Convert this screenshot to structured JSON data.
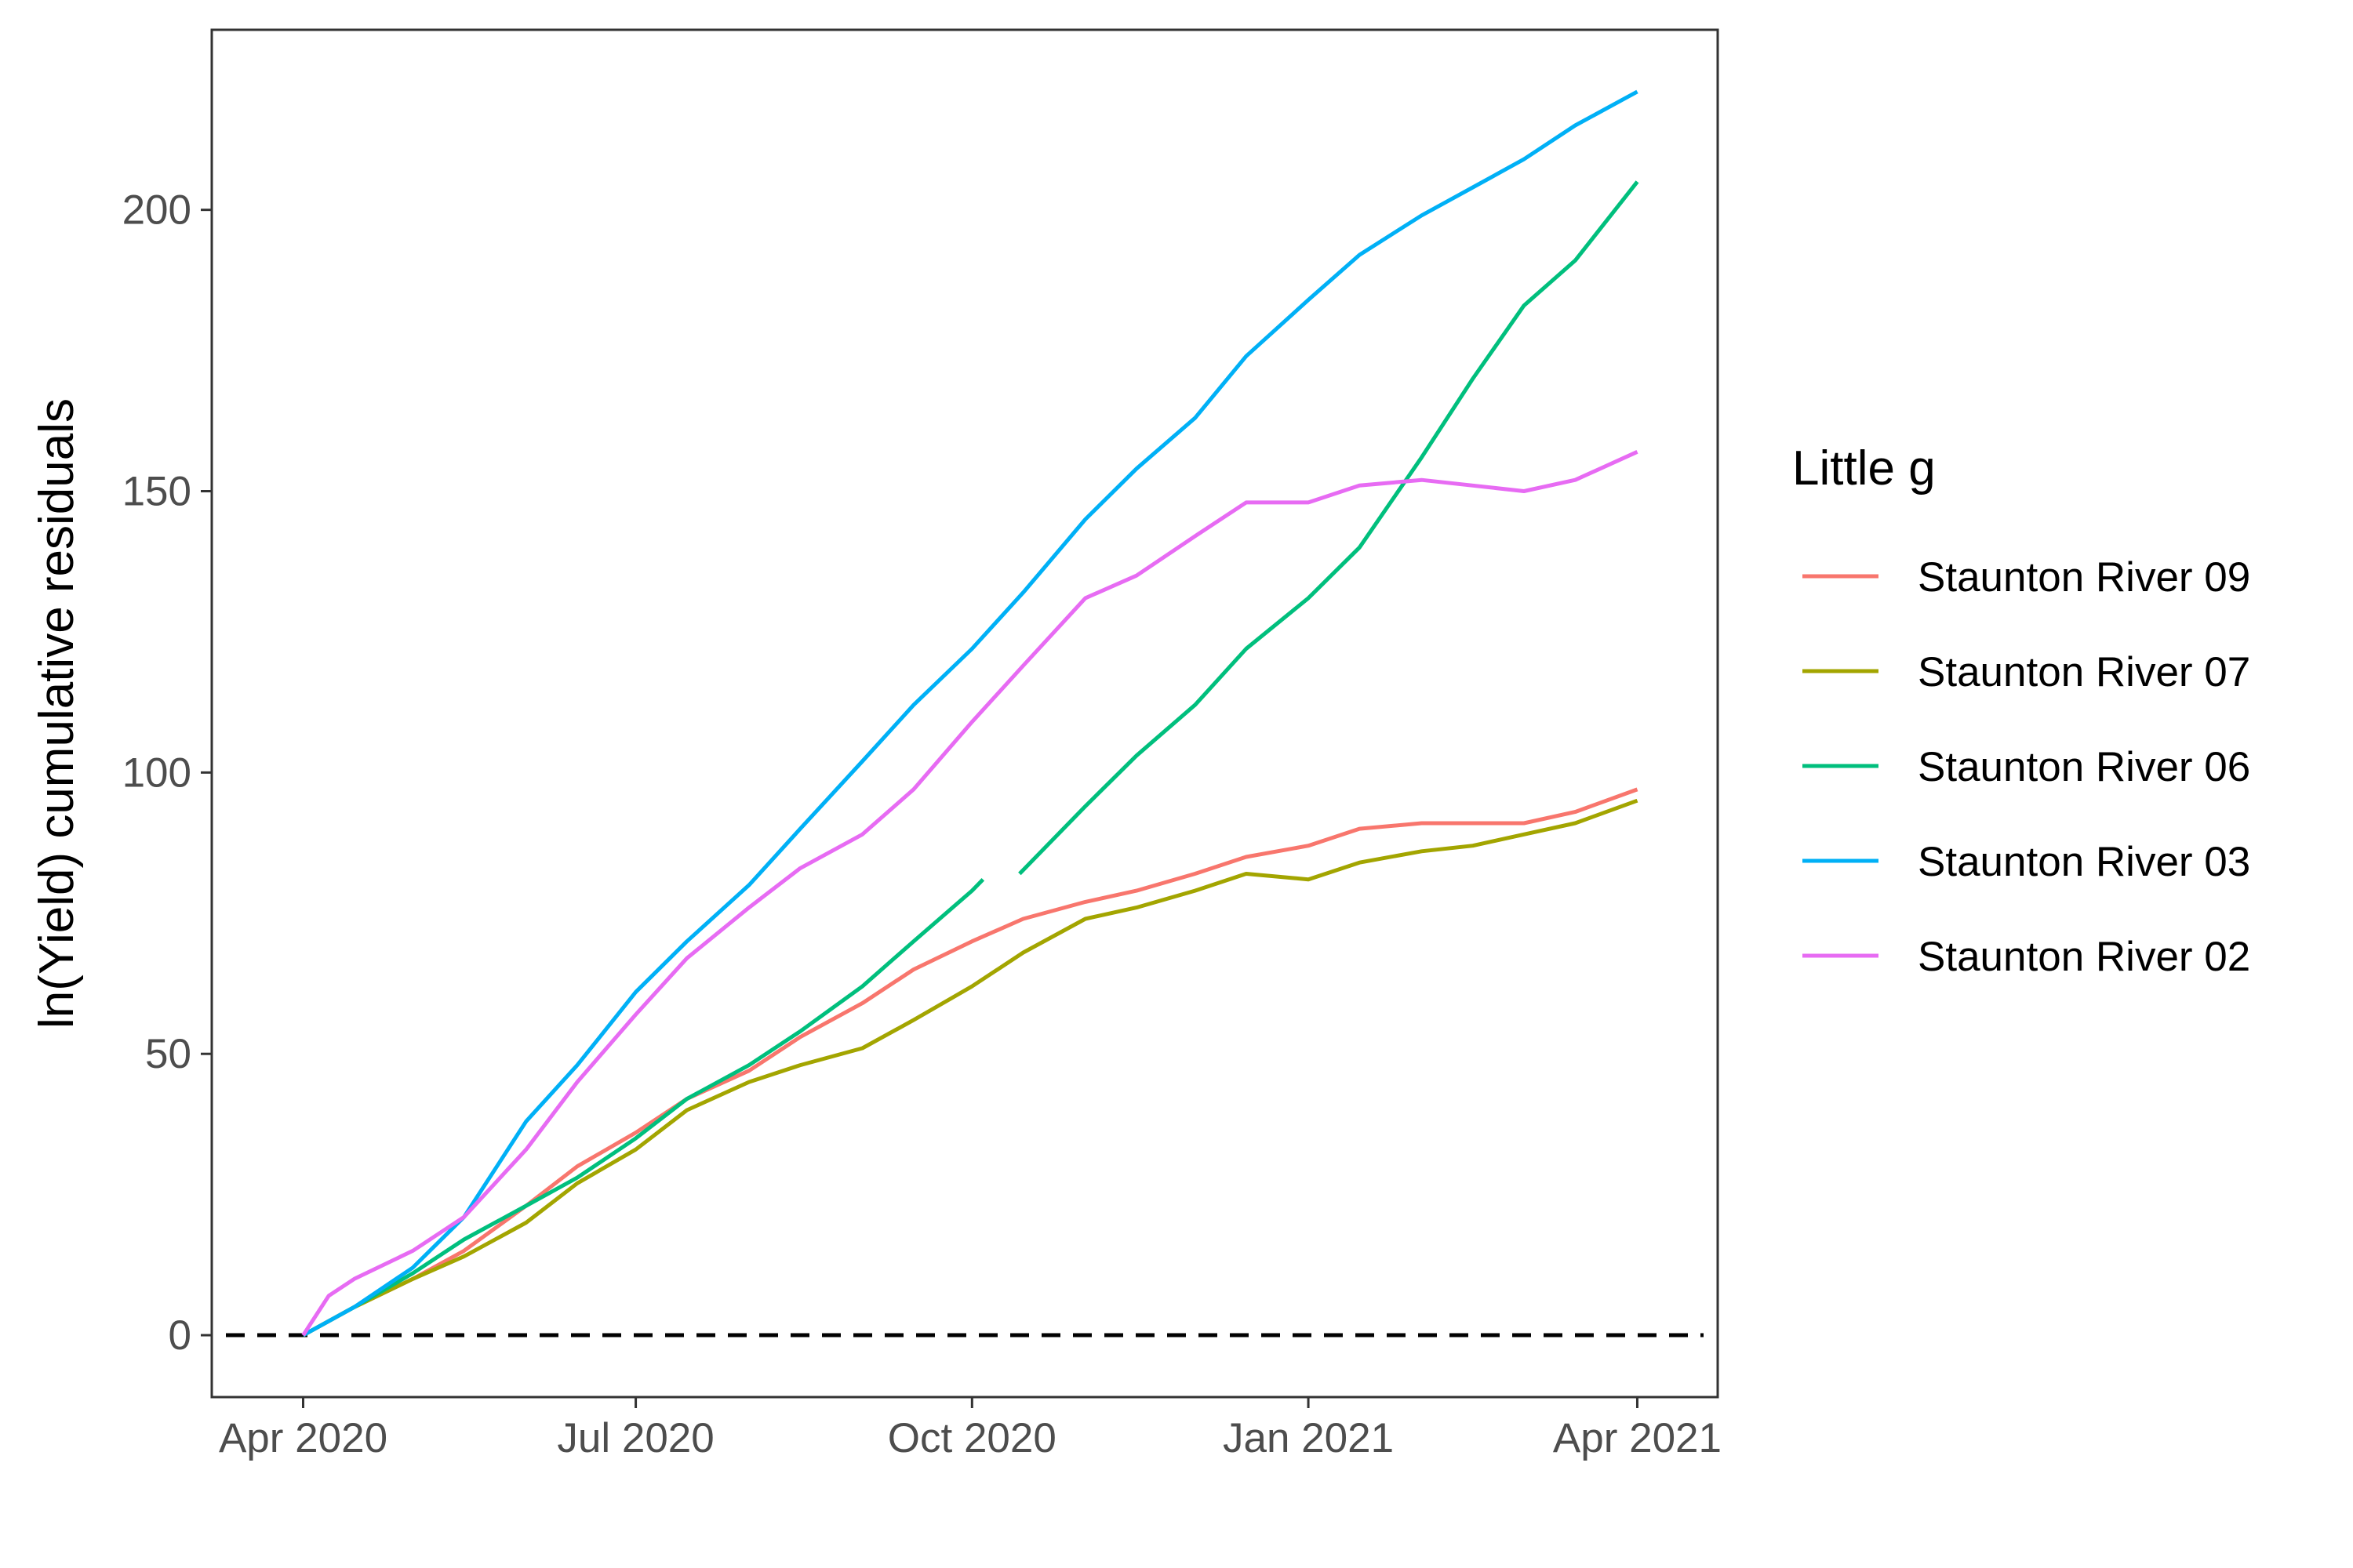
{
  "chart_data": {
    "type": "line",
    "ylabel": "ln(Yield) cumulative residuals",
    "xlabel": "",
    "x_ticks": [
      "Apr 2020",
      "Jul 2020",
      "Oct 2020",
      "Jan 2021",
      "Apr 2021"
    ],
    "y_ticks": [
      "0",
      "50",
      "100",
      "150",
      "200"
    ],
    "ylim": [
      -11,
      232
    ],
    "xlim": [
      "2020-03-07",
      "2021-04-23"
    ],
    "grid": false,
    "reference_line": {
      "y": 0,
      "style": "dashed",
      "color": "#000000"
    },
    "legend": {
      "title": "Little g",
      "placement": "right"
    },
    "series": [
      {
        "name": "Staunton River 09",
        "color": "#F8766D",
        "points": [
          [
            "2020-04-01",
            0
          ],
          [
            "2020-04-15",
            5
          ],
          [
            "2020-05-01",
            10
          ],
          [
            "2020-05-15",
            15
          ],
          [
            "2020-06-01",
            23
          ],
          [
            "2020-06-15",
            30
          ],
          [
            "2020-07-01",
            36
          ],
          [
            "2020-07-15",
            42
          ],
          [
            "2020-08-01",
            47
          ],
          [
            "2020-08-15",
            53
          ],
          [
            "2020-09-01",
            59
          ],
          [
            "2020-09-15",
            65
          ],
          [
            "2020-10-01",
            70
          ],
          [
            "2020-10-15",
            74
          ],
          [
            "2020-11-01",
            77
          ],
          [
            "2020-11-15",
            79
          ],
          [
            "2020-12-01",
            82
          ],
          [
            "2020-12-15",
            85
          ],
          [
            "2021-01-01",
            87
          ],
          [
            "2021-01-15",
            90
          ],
          [
            "2021-02-01",
            91
          ],
          [
            "2021-02-15",
            91
          ],
          [
            "2021-03-01",
            91
          ],
          [
            "2021-03-15",
            93
          ],
          [
            "2021-04-01",
            97
          ]
        ]
      },
      {
        "name": "Staunton River 07",
        "color": "#A3A500",
        "points": [
          [
            "2020-04-01",
            0
          ],
          [
            "2020-04-15",
            5
          ],
          [
            "2020-05-01",
            10
          ],
          [
            "2020-05-15",
            14
          ],
          [
            "2020-06-01",
            20
          ],
          [
            "2020-06-15",
            27
          ],
          [
            "2020-07-01",
            33
          ],
          [
            "2020-07-15",
            40
          ],
          [
            "2020-08-01",
            45
          ],
          [
            "2020-08-15",
            48
          ],
          [
            "2020-09-01",
            51
          ],
          [
            "2020-09-15",
            56
          ],
          [
            "2020-10-01",
            62
          ],
          [
            "2020-10-15",
            68
          ],
          [
            "2020-11-01",
            74
          ],
          [
            "2020-11-15",
            76
          ],
          [
            "2020-12-01",
            79
          ],
          [
            "2020-12-15",
            82
          ],
          [
            "2021-01-01",
            81
          ],
          [
            "2021-01-15",
            84
          ],
          [
            "2021-02-01",
            86
          ],
          [
            "2021-02-15",
            87
          ],
          [
            "2021-03-01",
            89
          ],
          [
            "2021-03-15",
            91
          ],
          [
            "2021-04-01",
            95
          ]
        ]
      },
      {
        "name": "Staunton River 06",
        "color": "#00BF7D",
        "points": [
          [
            "2020-04-01",
            0
          ],
          [
            "2020-04-15",
            5
          ],
          [
            "2020-05-01",
            11
          ],
          [
            "2020-05-15",
            17
          ],
          [
            "2020-06-01",
            23
          ],
          [
            "2020-06-15",
            28
          ],
          [
            "2020-07-01",
            35
          ],
          [
            "2020-07-15",
            42
          ],
          [
            "2020-08-01",
            48
          ],
          [
            "2020-08-15",
            54
          ],
          [
            "2020-09-01",
            62
          ],
          [
            "2020-09-15",
            70
          ],
          [
            "2020-10-01",
            79
          ],
          [
            "2020-10-04",
            81
          ],
          null,
          [
            "2020-10-14",
            82
          ],
          [
            "2020-11-01",
            94
          ],
          [
            "2020-11-15",
            103
          ],
          [
            "2020-12-01",
            112
          ],
          [
            "2020-12-15",
            122
          ],
          [
            "2021-01-01",
            131
          ],
          [
            "2021-01-15",
            140
          ],
          [
            "2021-02-01",
            156
          ],
          [
            "2021-02-15",
            170
          ],
          [
            "2021-03-01",
            183
          ],
          [
            "2021-03-15",
            191
          ],
          [
            "2021-04-01",
            205
          ]
        ]
      },
      {
        "name": "Staunton River 03",
        "color": "#00B0F6",
        "points": [
          [
            "2020-04-01",
            0
          ],
          [
            "2020-04-15",
            5
          ],
          [
            "2020-05-01",
            12
          ],
          [
            "2020-05-15",
            21
          ],
          [
            "2020-06-01",
            38
          ],
          [
            "2020-06-15",
            48
          ],
          [
            "2020-07-01",
            61
          ],
          [
            "2020-07-15",
            70
          ],
          [
            "2020-08-01",
            80
          ],
          [
            "2020-08-15",
            90
          ],
          [
            "2020-09-01",
            102
          ],
          [
            "2020-09-15",
            112
          ],
          [
            "2020-10-01",
            122
          ],
          [
            "2020-10-15",
            132
          ],
          [
            "2020-11-01",
            145
          ],
          [
            "2020-11-15",
            154
          ],
          [
            "2020-12-01",
            163
          ],
          [
            "2020-12-15",
            174
          ],
          [
            "2021-01-01",
            184
          ],
          [
            "2021-01-15",
            192
          ],
          [
            "2021-02-01",
            199
          ],
          [
            "2021-02-15",
            204
          ],
          [
            "2021-03-01",
            209
          ],
          [
            "2021-03-15",
            215
          ],
          [
            "2021-04-01",
            221
          ]
        ]
      },
      {
        "name": "Staunton River 02",
        "color": "#E76BF3",
        "points": [
          [
            "2020-04-01",
            0
          ],
          [
            "2020-04-08",
            7
          ],
          [
            "2020-04-15",
            10
          ],
          [
            "2020-05-01",
            15
          ],
          [
            "2020-05-15",
            21
          ],
          [
            "2020-06-01",
            33
          ],
          [
            "2020-06-15",
            45
          ],
          [
            "2020-07-01",
            57
          ],
          [
            "2020-07-15",
            67
          ],
          [
            "2020-08-01",
            76
          ],
          [
            "2020-08-15",
            83
          ],
          [
            "2020-09-01",
            89
          ],
          [
            "2020-09-15",
            97
          ],
          [
            "2020-10-01",
            109
          ],
          [
            "2020-10-15",
            119
          ],
          [
            "2020-11-01",
            131
          ],
          [
            "2020-11-15",
            135
          ],
          [
            "2020-12-01",
            142
          ],
          [
            "2020-12-15",
            148
          ],
          [
            "2021-01-01",
            148
          ],
          [
            "2021-01-15",
            151
          ],
          [
            "2021-02-01",
            152
          ],
          [
            "2021-02-15",
            151
          ],
          [
            "2021-03-01",
            150
          ],
          [
            "2021-03-15",
            152
          ],
          [
            "2021-04-01",
            157
          ]
        ]
      }
    ]
  }
}
